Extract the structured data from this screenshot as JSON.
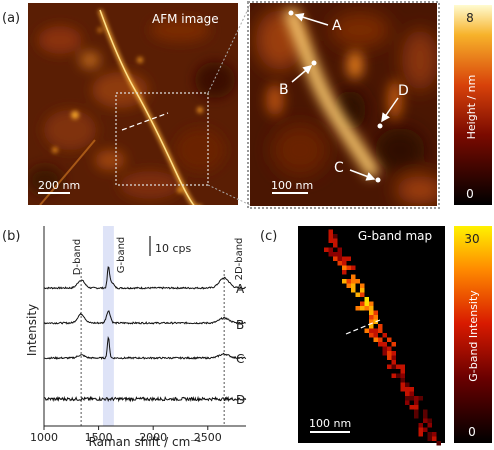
{
  "panel_labels": {
    "a": "(a)",
    "b": "(b)",
    "c": "(c)"
  },
  "afm_overview": {
    "title": "AFM image",
    "scalebar": "200 nm"
  },
  "afm_zoom": {
    "scalebar": "100 nm",
    "points": [
      {
        "label": "A"
      },
      {
        "label": "B"
      },
      {
        "label": "C"
      },
      {
        "label": "D"
      }
    ]
  },
  "height_colorbar": {
    "label": "Height / nm",
    "max": "8",
    "min": "0"
  },
  "spectra": {
    "ylabel": "Intensity",
    "xlabel": "Raman shift / cm⁻¹",
    "xticks": [
      "1000",
      "1500",
      "2000",
      "2500"
    ],
    "scale_label": "10 cps",
    "band_labels": {
      "d": "D-band",
      "g": "G-band",
      "twod": "2D-band"
    },
    "series": [
      {
        "name": "A"
      },
      {
        "name": "B"
      },
      {
        "name": "C"
      },
      {
        "name": "D"
      }
    ]
  },
  "gband_map": {
    "title": "G-band map",
    "scalebar": "100 nm"
  },
  "gband_colorbar": {
    "label": "G-band Intensity",
    "max": "30",
    "min": "0"
  },
  "chart_data": {
    "type": "line",
    "xlabel": "Raman shift / cm⁻¹",
    "ylabel": "Intensity",
    "xlim": [
      1000,
      2850
    ],
    "x_ticks": [
      1000,
      1500,
      2000,
      2500
    ],
    "band_positions": {
      "D-band": 1340,
      "G-band": 1590,
      "2D-band": 2650
    },
    "highlight_range": [
      1540,
      1640
    ],
    "scale_bar_cps": 10,
    "series": [
      {
        "name": "A",
        "baseline": 0,
        "peaks": [
          {
            "x": 1340,
            "h": 4
          },
          {
            "x": 1590,
            "h": 10
          },
          {
            "x": 1620,
            "h": 3
          },
          {
            "x": 2650,
            "h": 5
          }
        ]
      },
      {
        "name": "B",
        "baseline": 0,
        "peaks": [
          {
            "x": 1340,
            "h": 4.5
          },
          {
            "x": 1590,
            "h": 6
          },
          {
            "x": 2650,
            "h": 2.5
          }
        ]
      },
      {
        "name": "C",
        "baseline": 0,
        "peaks": [
          {
            "x": 1340,
            "h": 1.5
          },
          {
            "x": 1590,
            "h": 10
          },
          {
            "x": 2650,
            "h": 2
          }
        ]
      },
      {
        "name": "D",
        "baseline": 0,
        "peaks": []
      }
    ]
  }
}
